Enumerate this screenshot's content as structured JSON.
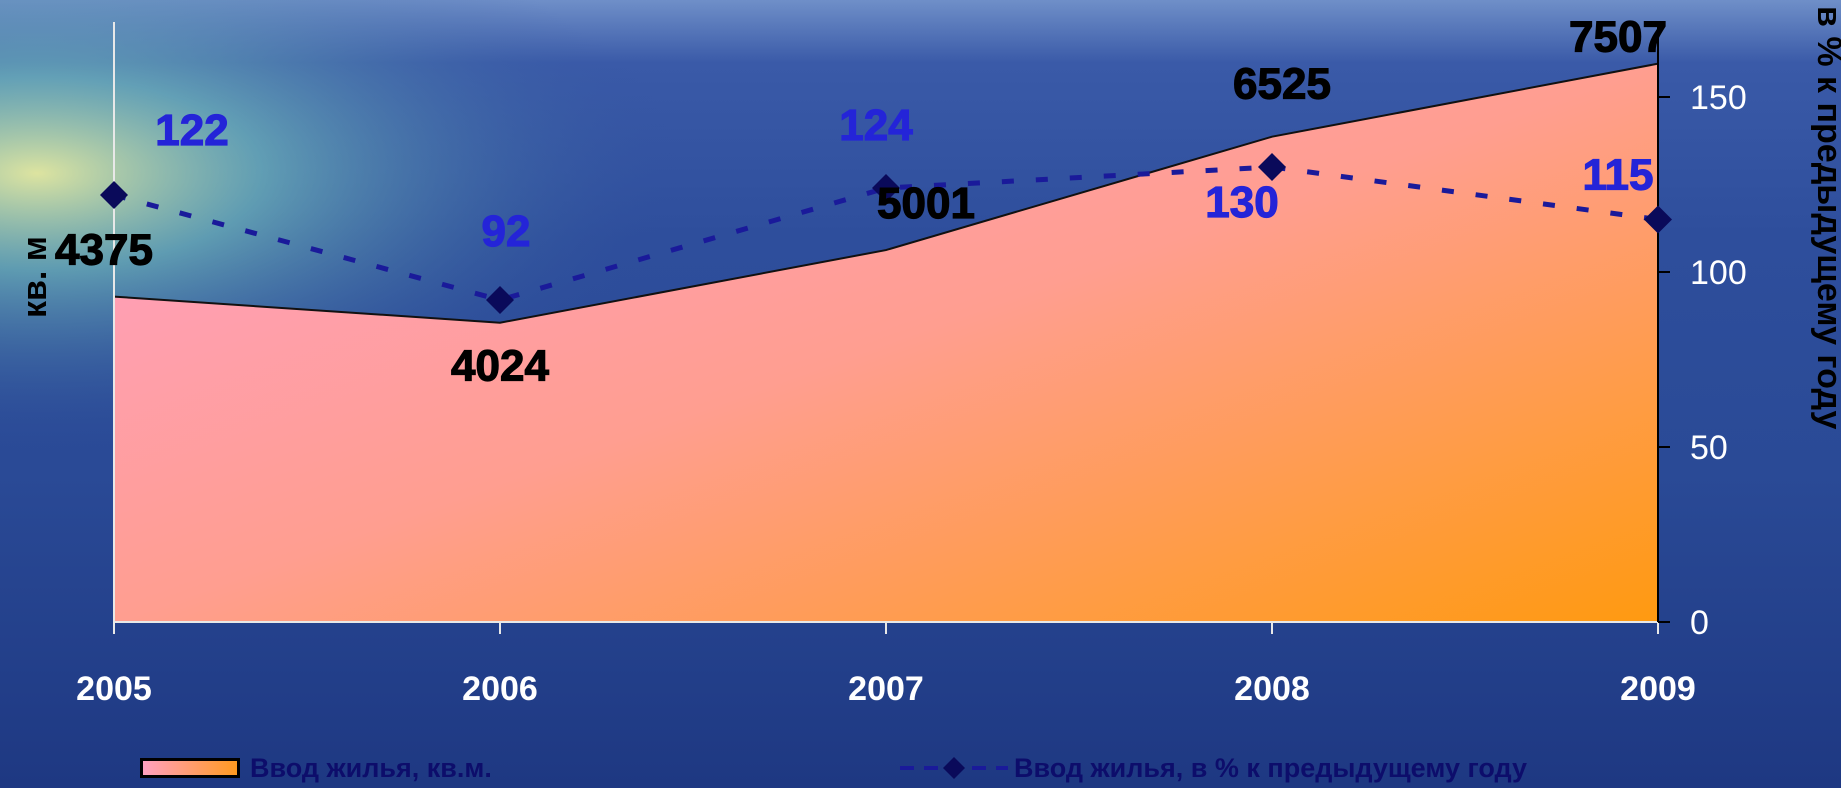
{
  "chart_data": {
    "type": "area+line",
    "categories": [
      "2005",
      "2006",
      "2007",
      "2008",
      "2009"
    ],
    "series": [
      {
        "name": "Ввод жилья,  кв.м.",
        "type": "area",
        "axis": "left",
        "values": [
          4375,
          4024,
          5001,
          6525,
          7507
        ],
        "labels": [
          "4375",
          "4024",
          "5001",
          "6525",
          "7507"
        ]
      },
      {
        "name": "Ввод жилья, в % к предыдущему году",
        "type": "line",
        "axis": "right",
        "values": [
          122,
          92,
          124,
          130,
          115
        ],
        "labels": [
          "122",
          "92",
          "124",
          "130",
          "115"
        ]
      }
    ],
    "ylabel_left": "кв. м",
    "ylabel_right": "в % к предыдущему году",
    "ylim_left": [
      0,
      8000
    ],
    "ylim_right": [
      0,
      170
    ],
    "yticks_right": [
      "0",
      "50",
      "100",
      "150"
    ],
    "legend_position": "bottom",
    "colors": {
      "area_top": "#ffa0c8",
      "area_bottom": "#ff9a10",
      "line": "#1a1a9a",
      "marker": "#0a0a5a",
      "line_label": "#2424d8",
      "area_label": "#000000"
    }
  }
}
